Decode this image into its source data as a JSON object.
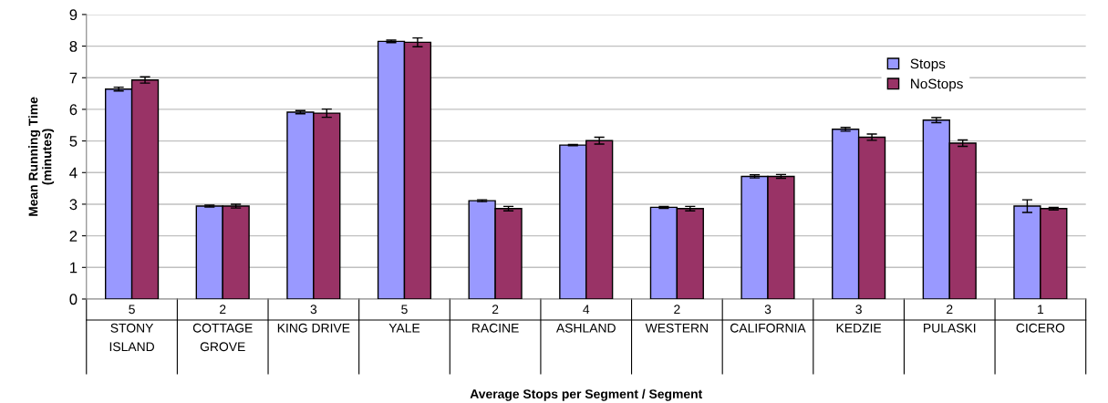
{
  "chart_data": {
    "type": "bar",
    "xlabel": "Average Stops per Segment / Segment",
    "ylabel": "Mean Running Time\n(minutes)",
    "categories": [
      "5\nSTONY\nISLAND",
      "2\nCOTTAGE\nGROVE",
      "3\nKING DRIVE",
      "5\nYALE",
      "2\nRACINE",
      "4\nASHLAND",
      "2\nWESTERN",
      "3\nCALIFORNIA",
      "3\nKEDZIE",
      "2\nPULASKI",
      "1\nCICERO"
    ],
    "series": [
      {
        "name": "Stops",
        "color": "#9999ff",
        "values": [
          6.64,
          2.94,
          5.91,
          8.15,
          3.11,
          4.87,
          2.9,
          3.88,
          5.37,
          5.66,
          2.94
        ],
        "errors": [
          0.06,
          0.03,
          0.05,
          0.04,
          0.03,
          0.02,
          0.03,
          0.05,
          0.06,
          0.08,
          0.2
        ]
      },
      {
        "name": "NoStops",
        "color": "#993366",
        "values": [
          6.93,
          2.94,
          5.88,
          8.12,
          2.86,
          5.01,
          2.86,
          3.88,
          5.12,
          4.93,
          2.86
        ],
        "errors": [
          0.1,
          0.06,
          0.13,
          0.14,
          0.07,
          0.11,
          0.07,
          0.06,
          0.1,
          0.1,
          0.04
        ]
      }
    ],
    "ylim": [
      0,
      9
    ],
    "yticks": [
      0,
      1,
      2,
      3,
      4,
      5,
      6,
      7,
      8,
      9
    ],
    "grid": "y",
    "legend": "top right"
  }
}
